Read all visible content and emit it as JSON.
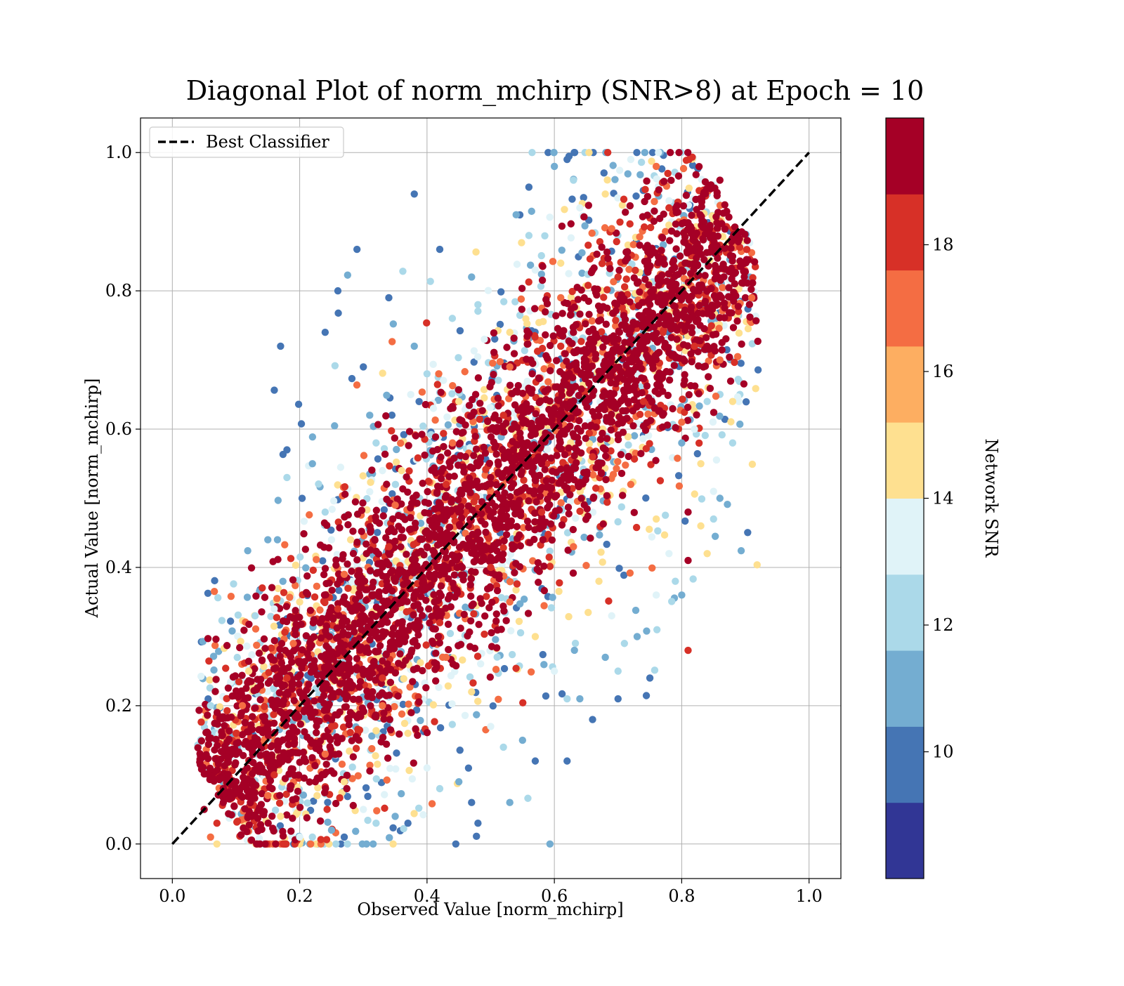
{
  "chart_data": {
    "type": "scatter",
    "title": "Diagonal Plot of norm_mchirp (SNR>8) at Epoch = 10",
    "xlabel": "Observed Value [norm_mchirp]",
    "ylabel": "Actual Value [norm_mchirp]",
    "xlim": [
      -0.05,
      1.05
    ],
    "ylim": [
      -0.05,
      1.05
    ],
    "xticks": [
      "0.0",
      "0.2",
      "0.4",
      "0.6",
      "0.8",
      "1.0"
    ],
    "yticks": [
      "0.0",
      "0.2",
      "0.4",
      "0.6",
      "0.8",
      "1.0"
    ],
    "grid": true,
    "legend": {
      "position": "top-left",
      "entries": [
        "Best Classifier"
      ]
    },
    "reference_line": {
      "name": "Best Classifier",
      "style": "dashed",
      "color": "#000000",
      "x": [
        0.0,
        1.0
      ],
      "y": [
        0.0,
        1.0
      ]
    },
    "colorbar": {
      "label": "Network SNR",
      "range": [
        8,
        20
      ],
      "ticks": [
        "10",
        "12",
        "14",
        "16",
        "18"
      ],
      "tick_values": [
        10,
        12,
        14,
        16,
        18
      ],
      "colors": [
        "#313695",
        "#4575b4",
        "#74add1",
        "#abd9e9",
        "#e0f3f8",
        "#fee090",
        "#fdae61",
        "#f46d43",
        "#d73027",
        "#a50026"
      ]
    },
    "series": [
      {
        "snr": 19.5,
        "points": [
          [
            0.05,
            0.05
          ],
          [
            0.08,
            0.06
          ],
          [
            0.1,
            0.09
          ],
          [
            0.12,
            0.14
          ],
          [
            0.15,
            0.12
          ],
          [
            0.18,
            0.18
          ],
          [
            0.2,
            0.22
          ],
          [
            0.22,
            0.19
          ],
          [
            0.25,
            0.27
          ],
          [
            0.28,
            0.25
          ],
          [
            0.3,
            0.33
          ],
          [
            0.33,
            0.3
          ],
          [
            0.35,
            0.38
          ],
          [
            0.38,
            0.36
          ],
          [
            0.4,
            0.43
          ],
          [
            0.42,
            0.4
          ],
          [
            0.45,
            0.48
          ],
          [
            0.48,
            0.45
          ],
          [
            0.5,
            0.53
          ],
          [
            0.52,
            0.5
          ],
          [
            0.55,
            0.58
          ],
          [
            0.58,
            0.55
          ],
          [
            0.6,
            0.63
          ],
          [
            0.62,
            0.6
          ],
          [
            0.65,
            0.68
          ],
          [
            0.68,
            0.65
          ],
          [
            0.7,
            0.73
          ],
          [
            0.72,
            0.7
          ],
          [
            0.75,
            0.78
          ],
          [
            0.78,
            0.75
          ],
          [
            0.8,
            0.83
          ],
          [
            0.82,
            0.8
          ],
          [
            0.85,
            0.88
          ],
          [
            0.88,
            0.85
          ],
          [
            0.9,
            0.79
          ],
          [
            0.86,
            0.96
          ],
          [
            0.81,
            0.41
          ],
          [
            0.81,
            0.48
          ],
          [
            0.86,
            0.86
          ],
          [
            0.84,
            0.72
          ]
        ]
      },
      {
        "snr": 18.0,
        "points": [
          [
            0.07,
            0.03
          ],
          [
            0.16,
            0.1
          ],
          [
            0.25,
            0.17
          ],
          [
            0.33,
            0.24
          ],
          [
            0.42,
            0.32
          ],
          [
            0.5,
            0.4
          ],
          [
            0.58,
            0.48
          ],
          [
            0.66,
            0.56
          ],
          [
            0.74,
            0.64
          ],
          [
            0.82,
            0.72
          ],
          [
            0.1,
            0.16
          ],
          [
            0.18,
            0.24
          ],
          [
            0.26,
            0.34
          ],
          [
            0.34,
            0.43
          ],
          [
            0.43,
            0.52
          ],
          [
            0.52,
            0.62
          ],
          [
            0.61,
            0.72
          ],
          [
            0.7,
            0.82
          ],
          [
            0.78,
            0.92
          ],
          [
            0.81,
            0.28
          ]
        ]
      },
      {
        "snr": 16.5,
        "points": [
          [
            0.06,
            0.01
          ],
          [
            0.15,
            0.07
          ],
          [
            0.24,
            0.13
          ],
          [
            0.33,
            0.2
          ],
          [
            0.43,
            0.27
          ],
          [
            0.53,
            0.35
          ],
          [
            0.63,
            0.43
          ],
          [
            0.72,
            0.52
          ],
          [
            0.8,
            0.61
          ],
          [
            0.86,
            0.7
          ],
          [
            0.11,
            0.2
          ],
          [
            0.19,
            0.29
          ],
          [
            0.27,
            0.39
          ],
          [
            0.35,
            0.49
          ],
          [
            0.44,
            0.58
          ],
          [
            0.53,
            0.69
          ],
          [
            0.61,
            0.79
          ],
          [
            0.69,
            0.89
          ],
          [
            0.76,
            0.98
          ],
          [
            0.91,
            0.79
          ]
        ]
      },
      {
        "snr": 15.0,
        "points": [
          [
            0.07,
            0.0
          ],
          [
            0.17,
            0.04
          ],
          [
            0.27,
            0.09
          ],
          [
            0.37,
            0.16
          ],
          [
            0.47,
            0.22
          ],
          [
            0.57,
            0.3
          ],
          [
            0.67,
            0.38
          ],
          [
            0.76,
            0.47
          ],
          [
            0.83,
            0.55
          ],
          [
            0.88,
            0.64
          ],
          [
            0.12,
            0.25
          ],
          [
            0.2,
            0.35
          ],
          [
            0.28,
            0.44
          ],
          [
            0.36,
            0.54
          ],
          [
            0.45,
            0.64
          ],
          [
            0.53,
            0.74
          ],
          [
            0.61,
            0.84
          ],
          [
            0.68,
            0.94
          ],
          [
            0.83,
            0.46
          ],
          [
            0.84,
            0.42
          ]
        ]
      },
      {
        "snr": 13.5,
        "points": [
          [
            0.2,
            0.01
          ],
          [
            0.3,
            0.05
          ],
          [
            0.4,
            0.11
          ],
          [
            0.5,
            0.17
          ],
          [
            0.6,
            0.25
          ],
          [
            0.69,
            0.33
          ],
          [
            0.78,
            0.42
          ],
          [
            0.85,
            0.51
          ],
          [
            0.16,
            0.34
          ],
          [
            0.25,
            0.44
          ],
          [
            0.33,
            0.54
          ],
          [
            0.41,
            0.63
          ],
          [
            0.49,
            0.73
          ],
          [
            0.57,
            0.83
          ],
          [
            0.64,
            0.92
          ],
          [
            0.72,
            0.99
          ],
          [
            0.76,
            0.36
          ],
          [
            0.82,
            0.6
          ]
        ]
      },
      {
        "snr": 12.0,
        "points": [
          [
            0.06,
            0.2
          ],
          [
            0.13,
            0.33
          ],
          [
            0.22,
            0.01
          ],
          [
            0.32,
            0.03
          ],
          [
            0.42,
            0.08
          ],
          [
            0.52,
            0.14
          ],
          [
            0.62,
            0.21
          ],
          [
            0.71,
            0.29
          ],
          [
            0.79,
            0.38
          ],
          [
            0.85,
            0.47
          ],
          [
            0.88,
            0.58
          ],
          [
            0.24,
            0.48
          ],
          [
            0.32,
            0.58
          ],
          [
            0.4,
            0.68
          ],
          [
            0.48,
            0.78
          ],
          [
            0.56,
            0.88
          ],
          [
            0.63,
            0.96
          ],
          [
            0.7,
            0.25
          ],
          [
            0.84,
            0.64
          ],
          [
            0.18,
            0.53
          ]
        ]
      },
      {
        "snr": 10.5,
        "points": [
          [
            0.25,
            0.02
          ],
          [
            0.35,
            0.04
          ],
          [
            0.45,
            0.09
          ],
          [
            0.55,
            0.15
          ],
          [
            0.64,
            0.21
          ],
          [
            0.73,
            0.3
          ],
          [
            0.8,
            0.36
          ],
          [
            0.86,
            0.5
          ],
          [
            0.15,
            0.44
          ],
          [
            0.22,
            0.55
          ],
          [
            0.31,
            0.62
          ],
          [
            0.38,
            0.72
          ],
          [
            0.47,
            0.82
          ],
          [
            0.54,
            0.91
          ],
          [
            0.6,
            0.98
          ],
          [
            0.68,
            0.27
          ],
          [
            0.53,
            0.06
          ],
          [
            0.8,
            0.58
          ]
        ]
      },
      {
        "snr": 9.5,
        "points": [
          [
            0.27,
            0.01
          ],
          [
            0.37,
            0.03
          ],
          [
            0.47,
            0.06
          ],
          [
            0.57,
            0.12
          ],
          [
            0.66,
            0.18
          ],
          [
            0.75,
            0.24
          ],
          [
            0.62,
            0.12
          ],
          [
            0.17,
            0.72
          ],
          [
            0.24,
            0.74
          ],
          [
            0.26,
            0.8
          ],
          [
            0.29,
            0.86
          ],
          [
            0.38,
            0.94
          ],
          [
            0.3,
            0.69
          ],
          [
            0.34,
            0.79
          ],
          [
            0.42,
            0.86
          ],
          [
            0.56,
            0.95
          ],
          [
            0.62,
            0.99
          ],
          [
            0.18,
            0.57
          ],
          [
            0.7,
            0.21
          ],
          [
            0.48,
            0.03
          ]
        ]
      }
    ]
  }
}
